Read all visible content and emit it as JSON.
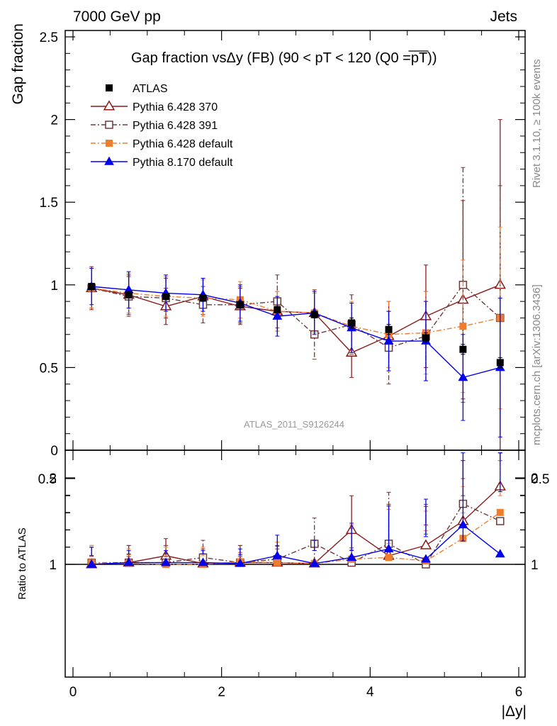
{
  "header": {
    "left": "7000 GeV pp",
    "right": "Jets"
  },
  "side_texts": {
    "rivet": "Rivet 3.1.10, ≥ 100k events",
    "mcplots": "mcplots.cern.ch [arXiv:1306.3436]"
  },
  "chart_data": [
    {
      "type": "line",
      "title": "Gap fraction vsΔy (FB) (90 < pT < 120 (Q0 =pT))",
      "ylabel": "Gap fraction",
      "watermark": "ATLAS_2011_S9126244",
      "xlim": [
        -0.1,
        6.0
      ],
      "ylim": [
        0,
        2.55
      ],
      "yticks": [
        0,
        0.5,
        1,
        1.5,
        2,
        2.5
      ],
      "ytick_labels": [
        "0",
        "0.5",
        "1",
        "1.5",
        "2",
        "2.5"
      ],
      "x": [
        0.25,
        0.75,
        1.25,
        1.75,
        2.25,
        2.75,
        3.25,
        3.75,
        4.25,
        4.75,
        5.25,
        5.75
      ],
      "series": [
        {
          "name": "ATLAS",
          "color": "#000000",
          "marker": "square-filled",
          "line": "none",
          "values": [
            0.99,
            0.94,
            0.93,
            0.92,
            0.88,
            0.85,
            0.82,
            0.77,
            0.73,
            0.68,
            0.61,
            0.53
          ],
          "err": [
            0.02,
            0.02,
            0.02,
            0.02,
            0.02,
            0.02,
            0.02,
            0.03,
            0.03,
            0.03,
            0.03,
            0.03
          ]
        },
        {
          "name": "Pythia 6.428 370",
          "color": "#8b1a1a",
          "marker": "triangle-open",
          "line": "solid",
          "values": [
            0.98,
            0.94,
            0.87,
            0.93,
            0.87,
            0.84,
            0.83,
            0.59,
            0.69,
            0.81,
            0.91,
            1.0
          ],
          "err": [
            0.13,
            0.12,
            0.11,
            0.11,
            0.11,
            0.12,
            0.14,
            0.15,
            0.21,
            0.31,
            0.6,
            1.0
          ]
        },
        {
          "name": "Pythia 6.428 391",
          "color": "#6b3b3b",
          "marker": "square-open",
          "line": "dashdot",
          "values": [
            0.98,
            0.93,
            0.92,
            0.88,
            0.88,
            0.9,
            0.7,
            0.76,
            0.62,
            0.69,
            1.0,
            0.8
          ],
          "err": [
            0.12,
            0.12,
            0.12,
            0.11,
            0.11,
            0.16,
            0.15,
            0.18,
            0.22,
            0.27,
            0.71,
            0.8
          ]
        },
        {
          "name": "Pythia 6.428 default",
          "color": "#f07d2e",
          "marker": "square-filled",
          "line": "dashdot",
          "values": [
            0.98,
            0.95,
            0.93,
            0.92,
            0.91,
            0.84,
            0.83,
            0.75,
            0.7,
            0.71,
            0.75,
            0.8
          ],
          "err": [
            0.12,
            0.12,
            0.12,
            0.11,
            0.11,
            0.12,
            0.12,
            0.15,
            0.2,
            0.25,
            0.4,
            0.55
          ]
        },
        {
          "name": "Pythia 8.170 default",
          "color": "#0000ee",
          "marker": "triangle-filled",
          "line": "solid",
          "values": [
            0.99,
            0.97,
            0.95,
            0.94,
            0.89,
            0.81,
            0.83,
            0.74,
            0.66,
            0.66,
            0.44,
            0.5
          ],
          "err": [
            0.11,
            0.11,
            0.11,
            0.1,
            0.11,
            0.12,
            0.13,
            0.15,
            0.18,
            0.24,
            0.26,
            0.42
          ]
        }
      ]
    },
    {
      "type": "line",
      "ylabel": "Ratio to ATLAS",
      "xlabel": "|Δy|",
      "xlim": [
        -0.1,
        6.0
      ],
      "ylim": [
        0.35,
        2.2
      ],
      "yticks": [
        0.5,
        1,
        2
      ],
      "ytick_labels": [
        "0.5",
        "1",
        "2"
      ],
      "xticks": [
        0,
        2,
        4,
        6
      ],
      "xtick_labels": [
        "0",
        "2",
        "4",
        "6"
      ],
      "x": [
        0.25,
        0.75,
        1.25,
        1.75,
        2.25,
        2.75,
        3.25,
        3.75,
        4.25,
        4.75,
        5.25,
        5.75
      ],
      "bands": {
        "stat_color": "#80ff80",
        "total_color": "#ffff80",
        "stat_halfwidth": [
          0.01,
          0.01,
          0.01,
          0.01,
          0.01,
          0.015,
          0.02,
          0.025,
          0.03,
          0.04,
          0.05,
          0.07
        ],
        "total_halfwidth": [
          0.015,
          0.015,
          0.015,
          0.015,
          0.02,
          0.03,
          0.035,
          0.04,
          0.05,
          0.07,
          0.12,
          0.14
        ]
      },
      "series": [
        {
          "name": "Pythia 6.428 370",
          "color": "#8b1a1a",
          "marker": "triangle-open",
          "line": "solid",
          "values": [
            1.0,
            0.99,
            0.95,
            1.01,
            0.99,
            0.99,
            1.01,
            0.8,
            0.95,
            1.22,
            1.5,
            1.9
          ],
          "err": [
            0.1,
            0.1,
            0.1,
            0.1,
            0.1,
            0.1,
            0.15,
            0.2,
            0.3,
            0.45,
            0.9,
            1.6
          ]
        },
        {
          "name": "Pythia 6.428 391",
          "color": "#6b3b3b",
          "marker": "square-open",
          "line": "dashdot",
          "values": [
            0.99,
            0.99,
            0.99,
            0.96,
            0.99,
            1.06,
            0.88,
            0.99,
            0.88,
            1.0,
            1.7,
            1.5
          ],
          "err": [
            0.1,
            0.1,
            0.1,
            0.1,
            0.1,
            0.15,
            0.15,
            0.2,
            0.3,
            0.35,
            1.2,
            1.5
          ]
        },
        {
          "name": "Pythia 6.428 default",
          "color": "#f07d2e",
          "marker": "square-filled",
          "line": "dashdot",
          "values": [
            0.99,
            1.01,
            1.0,
            1.0,
            1.03,
            0.99,
            1.01,
            0.97,
            0.96,
            1.04,
            1.3,
            1.6
          ],
          "err": [
            0.1,
            0.1,
            0.1,
            0.1,
            0.1,
            0.12,
            0.15,
            0.2,
            0.28,
            0.35,
            0.6,
            1.0
          ]
        },
        {
          "name": "Pythia 8.170 default",
          "color": "#0000ee",
          "marker": "triangle-filled",
          "line": "solid",
          "values": [
            1.0,
            1.02,
            1.02,
            1.02,
            1.01,
            0.95,
            1.01,
            0.96,
            0.91,
            0.97,
            0.77,
            0.94
          ],
          "err": [
            0.1,
            0.1,
            0.1,
            0.1,
            0.1,
            0.12,
            0.15,
            0.2,
            0.25,
            0.35,
            0.5,
            0.9
          ]
        }
      ]
    }
  ]
}
